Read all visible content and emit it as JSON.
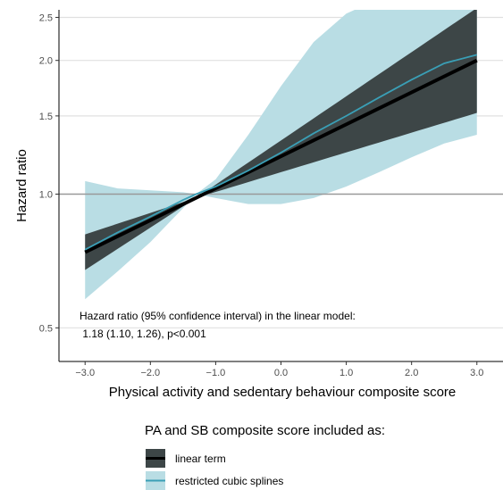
{
  "chart_data": {
    "type": "line",
    "xlabel": "Physical activity and sedentary behaviour composite score",
    "ylabel": "Hazard ratio",
    "x_range": [
      -3.4,
      3.4
    ],
    "y_range": [
      0.42,
      2.6
    ],
    "y_scale": "log",
    "x_ticks": [
      -3,
      -2,
      -1,
      0,
      1,
      2,
      3
    ],
    "x_tick_labels": [
      "−3.0",
      "−2.0",
      "−1.0",
      "0.0",
      "1.0",
      "2.0",
      "3.0"
    ],
    "y_ticks": [
      0.5,
      1.0,
      1.5,
      2.0,
      2.5
    ],
    "y_tick_labels": [
      "0.5",
      "1.0",
      "1.5",
      "2.0",
      "2.5"
    ],
    "reference_line": 1.0,
    "grid": "horizontal",
    "colors": {
      "linear_line": "#000000",
      "linear_band": "#3d4647",
      "spline_line": "#3a9fb6",
      "spline_band": "#b9dde4",
      "reference": "#999999",
      "grid": "#e0e0e0"
    },
    "series": [
      {
        "name": "linear term",
        "x": [
          -3.0,
          3.0
        ],
        "y": [
          0.74,
          2.0
        ],
        "lower": [
          0.69,
          1.48
        ],
        "upper": [
          0.83,
          2.55
        ]
      },
      {
        "name": "restricted cubic splines",
        "x": [
          -3.0,
          -2.5,
          -2.0,
          -1.5,
          -1.3,
          -1.0,
          -0.5,
          0.0,
          0.5,
          1.0,
          1.5,
          2.0,
          2.5,
          3.0
        ],
        "y": [
          0.75,
          0.82,
          0.89,
          0.97,
          1.0,
          1.04,
          1.13,
          1.24,
          1.37,
          1.5,
          1.65,
          1.81,
          1.97,
          2.06
        ],
        "lower": [
          0.58,
          0.67,
          0.78,
          0.93,
          1.0,
          0.98,
          0.95,
          0.95,
          0.98,
          1.04,
          1.12,
          1.21,
          1.3,
          1.36
        ],
        "upper": [
          1.07,
          1.03,
          1.02,
          1.01,
          1.0,
          1.08,
          1.36,
          1.75,
          2.2,
          2.55,
          2.75,
          2.9,
          2.9,
          2.9
        ]
      }
    ],
    "annotation": [
      "Hazard ratio (95% confidence interval) in the linear model:",
      " 1.18 (1.10, 1.26), p<0.001"
    ],
    "legend": {
      "title": "PA and SB composite score included as:",
      "position": "bottom",
      "entries": [
        "linear term",
        "restricted cubic splines"
      ]
    }
  }
}
